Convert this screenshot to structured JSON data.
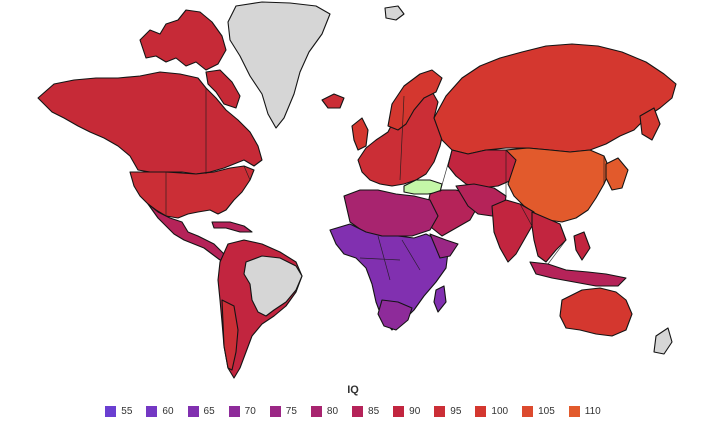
{
  "map": {
    "legend_title": "IQ",
    "legend": [
      {
        "value": "55",
        "color": "#6a3fd1"
      },
      {
        "value": "60",
        "color": "#7438c4"
      },
      {
        "value": "65",
        "color": "#8130b0"
      },
      {
        "value": "70",
        "color": "#8e2b9a"
      },
      {
        "value": "75",
        "color": "#9b2785"
      },
      {
        "value": "80",
        "color": "#a8246f"
      },
      {
        "value": "85",
        "color": "#b52359"
      },
      {
        "value": "90",
        "color": "#c2253f"
      },
      {
        "value": "95",
        "color": "#cb2e36"
      },
      {
        "value": "100",
        "color": "#d4372f"
      },
      {
        "value": "105",
        "color": "#dc4a2e"
      },
      {
        "value": "110",
        "color": "#e25a2c"
      }
    ],
    "colors": {
      "no_data": "#d6d6d6",
      "turkey_highlight": "#c4f7a8"
    }
  }
}
